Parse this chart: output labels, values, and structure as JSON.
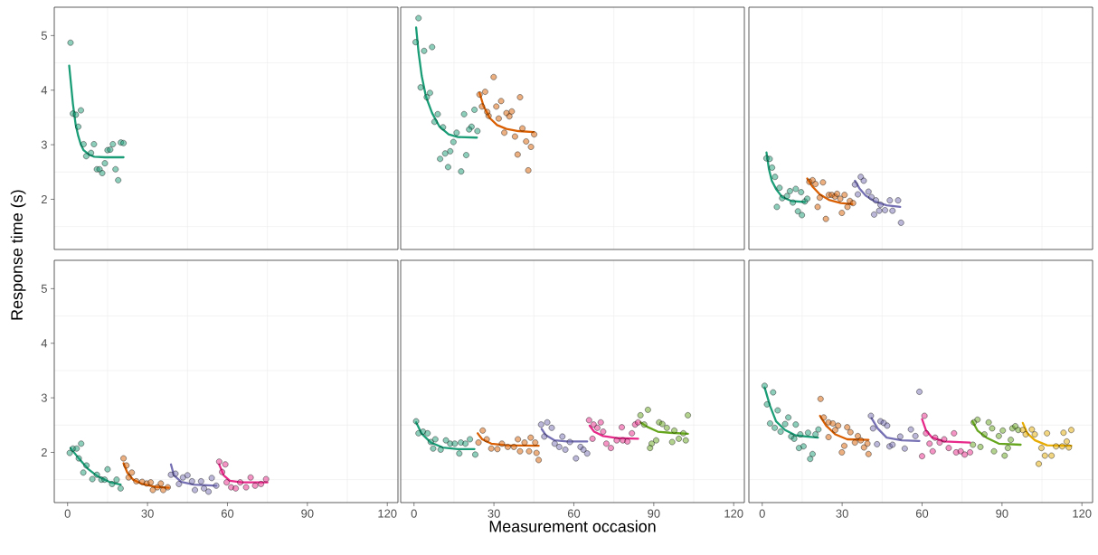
{
  "chart_data": [
    {
      "type": "scatter",
      "xlim": [
        -5,
        124
      ],
      "ylim": [
        1.08,
        5.52
      ],
      "xticks": [
        0,
        30,
        60,
        90,
        120,
        {
          "value": 15,
          "label": null
        },
        {
          "value": 45,
          "label": null
        },
        {
          "value": 75,
          "label": null
        },
        {
          "value": 105,
          "label": null
        }
      ],
      "yticks": [
        2,
        3,
        4,
        5,
        {
          "value": 1.5,
          "label": null
        },
        {
          "value": 2.5,
          "label": null
        },
        {
          "value": 3.5,
          "label": null
        },
        {
          "value": 4.5,
          "label": null
        }
      ],
      "grid": true,
      "marker": "circle",
      "tick_labels": "y",
      "series": [
        {
          "color": "#1b9e77",
          "x": [
            1.1,
            2,
            3.1,
            5,
            4,
            6,
            7,
            8.8,
            9.9,
            11,
            12,
            13,
            14,
            15,
            16,
            17,
            18,
            19,
            20,
            21
          ],
          "values": [
            4.87,
            3.57,
            3.55,
            3.63,
            3.33,
            3.01,
            2.79,
            2.85,
            3.01,
            2.55,
            2.55,
            2.48,
            2.66,
            2.9,
            2.91,
            3.01,
            2.55,
            2.35,
            3.04,
            3.03
          ]
        },
        {
          "type": "line",
          "marker": "none",
          "color": "#1b9e77",
          "x": [
            0.6,
            2,
            3,
            4,
            5,
            6,
            8,
            10,
            14,
            21
          ],
          "values": [
            4.45,
            3.75,
            3.38,
            3.16,
            3.0,
            2.9,
            2.82,
            2.78,
            2.77,
            2.77
          ]
        }
      ]
    },
    {
      "type": "scatter",
      "xlim": [
        -5,
        124
      ],
      "ylim": [
        1.08,
        5.52
      ],
      "xticks": [
        0,
        30,
        60,
        90,
        120,
        {
          "value": 15,
          "label": null
        },
        {
          "value": 45,
          "label": null
        },
        {
          "value": 75,
          "label": null
        },
        {
          "value": 105,
          "label": null
        }
      ],
      "yticks": [
        2,
        3,
        4,
        5,
        {
          "value": 1.5,
          "label": null
        },
        {
          "value": 2.5,
          "label": null
        },
        {
          "value": 3.5,
          "label": null
        },
        {
          "value": 4.5,
          "label": null
        }
      ],
      "grid": true,
      "marker": "circle",
      "tick_labels": false,
      "series": [
        {
          "color": "#1b9e77",
          "x": [
            1.7,
            0.6,
            3.8,
            6.8,
            2.5,
            4.8,
            6,
            8.9,
            7.7,
            10.9,
            16,
            18.8,
            22.7,
            21.6,
            20.7,
            23.8,
            14.8,
            13.6,
            11.7,
            9.8,
            12.8,
            19.6,
            17.7
          ],
          "values": [
            5.32,
            4.88,
            4.72,
            4.79,
            4.05,
            3.87,
            3.95,
            3.56,
            3.42,
            3.32,
            3.22,
            3.56,
            3.64,
            3.33,
            3.28,
            3.25,
            3.05,
            2.88,
            2.84,
            2.74,
            2.59,
            2.81,
            2.51
          ]
        },
        {
          "type": "line",
          "marker": "none",
          "color": "#1b9e77",
          "x": [
            0.8,
            1.7,
            2.9,
            4.5,
            6.8,
            9.6,
            13,
            16.5,
            23.6
          ],
          "values": [
            5.15,
            4.7,
            4.26,
            3.88,
            3.58,
            3.33,
            3.19,
            3.14,
            3.13
          ]
        },
        {
          "color": "#d95f02",
          "x": [
            29.9,
            26.7,
            24.6,
            25.5,
            30.9,
            32.7,
            39.8,
            28,
            27.5,
            31.8,
            34.7,
            35.8,
            36.7,
            33.9,
            37.9,
            40.7,
            42.1,
            45.1,
            43.9,
            38.9,
            42.9
          ],
          "values": [
            4.24,
            3.97,
            3.92,
            3.7,
            3.7,
            3.8,
            3.87,
            3.53,
            3.6,
            3.48,
            3.58,
            3.52,
            3.61,
            3.22,
            3.15,
            3.3,
            3.06,
            3.19,
            2.96,
            2.82,
            2.53
          ]
        },
        {
          "type": "line",
          "marker": "none",
          "color": "#d95f02",
          "x": [
            24.6,
            26.1,
            28.4,
            31.2,
            34.7,
            39.2,
            44.9
          ],
          "values": [
            3.95,
            3.71,
            3.49,
            3.36,
            3.29,
            3.25,
            3.23
          ]
        }
      ]
    },
    {
      "type": "scatter",
      "xlim": [
        -5,
        124
      ],
      "ylim": [
        1.08,
        5.52
      ],
      "xticks": [
        0,
        30,
        60,
        90,
        120,
        {
          "value": 15,
          "label": null
        },
        {
          "value": 45,
          "label": null
        },
        {
          "value": 75,
          "label": null
        },
        {
          "value": 105,
          "label": null
        }
      ],
      "yticks": [
        2,
        3,
        4,
        5,
        {
          "value": 1.5,
          "label": null
        },
        {
          "value": 2.5,
          "label": null
        },
        {
          "value": 3.5,
          "label": null
        },
        {
          "value": 4.5,
          "label": null
        }
      ],
      "grid": true,
      "marker": "circle",
      "tick_labels": false,
      "series": [
        {
          "color": "#1b9e77",
          "x": [
            1.6,
            2.8,
            3.7,
            4.8,
            6.5,
            5.5,
            7.5,
            9.3,
            10.4,
            11.5,
            12.6,
            14.6,
            13.4,
            14.9,
            16,
            16.9
          ],
          "values": [
            2.75,
            2.74,
            2.58,
            2.41,
            2.21,
            1.86,
            2.02,
            2.06,
            2.15,
            1.94,
            2.19,
            2.13,
            1.78,
            1.71,
            1.96,
            2.01
          ]
        },
        {
          "type": "line",
          "marker": "none",
          "color": "#1b9e77",
          "x": [
            1.6,
            2.5,
            3.6,
            5.3,
            7.5,
            10.9,
            16
          ],
          "values": [
            2.86,
            2.56,
            2.34,
            2.18,
            2.04,
            1.97,
            1.95
          ]
        },
        {
          "color": "#d95f02",
          "x": [
            17.7,
            18.9,
            20,
            22.8,
            21.6,
            20.8,
            23.9,
            25,
            26.1,
            27.3,
            28.1,
            29.3,
            30.9,
            29.9,
            32,
            32.9,
            34.1
          ],
          "values": [
            2.32,
            2.35,
            2.28,
            2.31,
            2.03,
            1.86,
            1.64,
            2.08,
            2.08,
            2.05,
            2.1,
            2.01,
            2.08,
            1.75,
            1.86,
            1.97,
            1.93
          ]
        },
        {
          "type": "line",
          "marker": "none",
          "color": "#d95f02",
          "x": [
            16.9,
            18.9,
            21.6,
            25,
            29.5,
            33.8
          ],
          "values": [
            2.38,
            2.23,
            2.09,
            1.99,
            1.93,
            1.91
          ]
        },
        {
          "color": "#7570b3",
          "x": [
            37,
            38.1,
            34.8,
            35.9,
            39.9,
            41,
            42.7,
            44.4,
            47.9,
            51,
            46.1,
            48.9,
            43.9,
            42,
            52.1
          ],
          "values": [
            2.41,
            2.34,
            2.27,
            2.09,
            2.14,
            2.04,
            1.98,
            1.9,
            1.98,
            1.98,
            1.8,
            1.79,
            1.79,
            1.72,
            1.57
          ]
        },
        {
          "type": "line",
          "marker": "none",
          "color": "#7570b3",
          "x": [
            34.8,
            36.5,
            38.8,
            42.2,
            46.7,
            51.8
          ],
          "values": [
            2.34,
            2.2,
            2.07,
            1.96,
            1.89,
            1.86
          ]
        }
      ]
    },
    {
      "type": "scatter",
      "xlim": [
        -5,
        124
      ],
      "ylim": [
        1.08,
        5.52
      ],
      "xticks": [
        0,
        30,
        60,
        90,
        120,
        {
          "value": 15,
          "label": null
        },
        {
          "value": 45,
          "label": null
        },
        {
          "value": 75,
          "label": null
        },
        {
          "value": 105,
          "label": null
        }
      ],
      "yticks": [
        2,
        3,
        4,
        5,
        {
          "value": 1.5,
          "label": null
        },
        {
          "value": 2.5,
          "label": null
        },
        {
          "value": 3.5,
          "label": null
        },
        {
          "value": 4.5,
          "label": null
        }
      ],
      "grid": true,
      "marker": "circle",
      "ylabel": "Response time (s)",
      "series": [
        {
          "color": "#1b9e77",
          "x": [
            0.8,
            2,
            3.4,
            5.1,
            4.2,
            7.1,
            5.9,
            9.3,
            11,
            12.7,
            15,
            13.9,
            16.7,
            18.4,
            19.9
          ],
          "values": [
            1.99,
            2.07,
            2.07,
            2.16,
            1.89,
            1.76,
            1.63,
            1.51,
            1.59,
            1.5,
            1.69,
            1.5,
            1.42,
            1.5,
            1.34
          ]
        },
        {
          "type": "line",
          "marker": "none",
          "color": "#1b9e77",
          "x": [
            1.1,
            4.2,
            7.6,
            11,
            15.6,
            19.9
          ],
          "values": [
            2.08,
            1.89,
            1.7,
            1.57,
            1.46,
            1.41
          ]
        },
        {
          "color": "#d95f02",
          "x": [
            21,
            22.1,
            24.1,
            22.9,
            25.8,
            28,
            29.7,
            31.2,
            32,
            33.7,
            35,
            35.9,
            37.6
          ],
          "values": [
            1.89,
            1.76,
            1.63,
            1.54,
            1.47,
            1.46,
            1.43,
            1.45,
            1.31,
            1.36,
            1.43,
            1.31,
            1.36
          ]
        },
        {
          "type": "line",
          "marker": "none",
          "color": "#d95f02",
          "x": [
            21,
            22.4,
            24.6,
            28,
            32.6,
            38
          ],
          "values": [
            1.8,
            1.63,
            1.5,
            1.42,
            1.37,
            1.35
          ]
        },
        {
          "color": "#7570b3",
          "x": [
            38.8,
            40.5,
            41.8,
            43.3,
            45,
            46.7,
            47.8,
            50.1,
            51.2,
            52.9,
            54.1,
            55.8
          ],
          "values": [
            1.59,
            1.61,
            1.42,
            1.54,
            1.58,
            1.47,
            1.31,
            1.47,
            1.34,
            1.28,
            1.53,
            1.39
          ]
        },
        {
          "type": "line",
          "marker": "none",
          "color": "#7570b3",
          "x": [
            38.8,
            39.9,
            42.7,
            47.3,
            55.8
          ],
          "values": [
            1.78,
            1.58,
            1.46,
            1.41,
            1.39
          ]
        },
        {
          "color": "#e7298a",
          "x": [
            56.9,
            59.2,
            58,
            59.7,
            61.4,
            63.1,
            64.8,
            67,
            68.7,
            70.4,
            72.6,
            74.5
          ],
          "values": [
            1.83,
            1.78,
            1.64,
            1.45,
            1.36,
            1.34,
            1.45,
            1.36,
            1.54,
            1.39,
            1.42,
            1.51
          ]
        },
        {
          "type": "line",
          "marker": "none",
          "color": "#e7298a",
          "x": [
            56.9,
            58.6,
            60.9,
            65.4,
            75
          ],
          "values": [
            1.78,
            1.58,
            1.48,
            1.45,
            1.45
          ]
        }
      ]
    },
    {
      "type": "scatter",
      "xlim": [
        -5,
        124
      ],
      "ylim": [
        1.08,
        5.52
      ],
      "xticks": [
        0,
        30,
        60,
        90,
        120,
        {
          "value": 15,
          "label": null
        },
        {
          "value": 45,
          "label": null
        },
        {
          "value": 75,
          "label": null
        },
        {
          "value": 105,
          "label": null
        }
      ],
      "yticks": [
        2,
        3,
        4,
        5,
        {
          "value": 1.5,
          "label": null
        },
        {
          "value": 2.5,
          "label": null
        },
        {
          "value": 3.5,
          "label": null
        },
        {
          "value": 4.5,
          "label": null
        }
      ],
      "grid": true,
      "marker": "circle",
      "tick_labels": "x",
      "xlabel": "Measurement occasion",
      "series": [
        {
          "color": "#1b9e77",
          "x": [
            0.8,
            1.7,
            3.4,
            5.1,
            6.3,
            8,
            7.2,
            10,
            12,
            13.6,
            15.3,
            17,
            17.6,
            19.3,
            21,
            23
          ],
          "values": [
            2.57,
            2.35,
            2.38,
            2.35,
            2.19,
            2.24,
            2.07,
            2.05,
            2.22,
            2.16,
            2.16,
            1.98,
            2.18,
            2.16,
            2.24,
            1.96
          ]
        },
        {
          "type": "line",
          "marker": "none",
          "color": "#1b9e77",
          "x": [
            0.8,
            2.8,
            6.3,
            10.8,
            16.5,
            22.7
          ],
          "values": [
            2.55,
            2.35,
            2.18,
            2.09,
            2.06,
            2.06
          ]
        },
        {
          "color": "#d95f02",
          "x": [
            25.8,
            24.2,
            27.3,
            29,
            31.3,
            33,
            35.2,
            37.5,
            39,
            39.8,
            41.5,
            43.2,
            43.8,
            45.5,
            46,
            46.8
          ],
          "values": [
            2.4,
            2.18,
            2.24,
            2.07,
            2.06,
            2.16,
            2.1,
            2.1,
            2.24,
            2.02,
            2.18,
            2.02,
            2.27,
            2.18,
            1.99,
            1.86
          ]
        },
        {
          "type": "line",
          "marker": "none",
          "color": "#d95f02",
          "x": [
            23.9,
            25.6,
            29,
            34.7,
            46.8
          ],
          "values": [
            2.35,
            2.24,
            2.16,
            2.13,
            2.12
          ]
        },
        {
          "color": "#7570b3",
          "x": [
            47.7,
            50,
            51.7,
            48.9,
            52.8,
            54.5,
            55.7,
            56.8,
            58.5,
            60.8,
            62.5,
            63.6,
            65
          ],
          "values": [
            2.51,
            2.55,
            2.45,
            2.29,
            2.16,
            2.1,
            2.29,
            2.05,
            2.19,
            1.89,
            2.1,
            2.05,
            1.98
          ]
        },
        {
          "type": "line",
          "marker": "none",
          "color": "#7570b3",
          "x": [
            47.9,
            49.4,
            52.8,
            57.4,
            65
          ],
          "values": [
            2.43,
            2.32,
            2.22,
            2.2,
            2.2
          ]
        },
        {
          "color": "#e7298a",
          "x": [
            65.7,
            67.4,
            70.1,
            68.8,
            71,
            67,
            78,
            72.2,
            73.9,
            76.1,
            78.4,
            80.1,
            81.8,
            83,
            84.1
          ],
          "values": [
            2.59,
            2.51,
            2.55,
            2.45,
            2.38,
            2.25,
            2.46,
            2.16,
            2.08,
            2.22,
            2.22,
            2.2,
            2.35,
            2.51,
            2.55
          ]
        },
        {
          "type": "line",
          "marker": "none",
          "color": "#e7298a",
          "x": [
            65.9,
            67.6,
            71,
            76.7,
            84.1
          ],
          "values": [
            2.49,
            2.38,
            2.3,
            2.26,
            2.25
          ]
        },
        {
          "color": "#66a61e",
          "x": [
            85,
            87.8,
            86.4,
            89.2,
            88.6,
            90.9,
            92,
            93.2,
            94.9,
            97.7,
            96.9,
            99.4,
            101.1,
            102,
            102.8
          ],
          "values": [
            2.68,
            2.78,
            2.51,
            2.16,
            2.08,
            2.22,
            2.55,
            2.52,
            2.45,
            2.4,
            2.19,
            2.25,
            2.35,
            2.22,
            2.68
          ]
        },
        {
          "type": "line",
          "marker": "none",
          "color": "#66a61e",
          "x": [
            85,
            87.5,
            91.5,
            96,
            102.8
          ],
          "values": [
            2.55,
            2.47,
            2.38,
            2.36,
            2.34
          ]
        }
      ]
    },
    {
      "type": "scatter",
      "xlim": [
        -5,
        124
      ],
      "ylim": [
        1.08,
        5.52
      ],
      "xticks": [
        0,
        30,
        60,
        90,
        120,
        {
          "value": 15,
          "label": null
        },
        {
          "value": 45,
          "label": null
        },
        {
          "value": 75,
          "label": null
        },
        {
          "value": 105,
          "label": null
        }
      ],
      "yticks": [
        2,
        3,
        4,
        5,
        {
          "value": 1.5,
          "label": null
        },
        {
          "value": 2.5,
          "label": null
        },
        {
          "value": 3.5,
          "label": null
        },
        {
          "value": 4.5,
          "label": null
        }
      ],
      "grid": true,
      "marker": "circle",
      "tick_labels": "x",
      "series": [
        {
          "color": "#1b9e77",
          "x": [
            0.9,
            4.1,
            1.8,
            5.8,
            2.95,
            4.7,
            6.9,
            8.6,
            9.8,
            10.9,
            12.6,
            12,
            14.3,
            15.5,
            13.8,
            17.2,
            18.9,
            18,
            20,
            21.1
          ],
          "values": [
            3.22,
            3.1,
            2.88,
            2.77,
            2.53,
            2.45,
            2.38,
            2.52,
            2.64,
            2.29,
            2.51,
            2.25,
            2.33,
            2.11,
            2.08,
            2.36,
            1.97,
            1.88,
            2.33,
            2.42
          ]
        },
        {
          "type": "line",
          "marker": "none",
          "color": "#1b9e77",
          "x": [
            0.9,
            2.95,
            5.2,
            8.6,
            12.6,
            20.9
          ],
          "values": [
            3.19,
            2.85,
            2.57,
            2.41,
            2.31,
            2.27
          ]
        },
        {
          "color": "#d95f02",
          "x": [
            21.9,
            23.1,
            24.9,
            26.5,
            28.5,
            27.4,
            24.9,
            31.9,
            33.1,
            30.8,
            29.9,
            34.8,
            35.9,
            37,
            38.2,
            39.5,
            39.9
          ],
          "values": [
            2.98,
            2.64,
            2.55,
            2.53,
            2.49,
            2.41,
            2.28,
            2.46,
            2.37,
            2.12,
            2.0,
            2.18,
            2.3,
            2.22,
            2.09,
            2.16,
            1.97
          ]
        },
        {
          "type": "line",
          "marker": "none",
          "color": "#d95f02",
          "x": [
            21.7,
            24,
            27.4,
            31.9,
            39.9
          ],
          "values": [
            2.67,
            2.49,
            2.33,
            2.24,
            2.23
          ]
        },
        {
          "color": "#7570b3",
          "x": [
            40.8,
            41.6,
            44.4,
            45.6,
            46.9,
            43.1,
            47.8,
            48.9,
            51.8,
            53.5,
            55.8,
            57.5,
            59
          ],
          "values": [
            2.67,
            2.44,
            2.57,
            2.54,
            2.49,
            2.15,
            2.11,
            2.14,
            2.29,
            2.07,
            2.42,
            2.3,
            3.11
          ]
        },
        {
          "type": "line",
          "marker": "none",
          "color": "#7570b3",
          "x": [
            41,
            43.3,
            46.7,
            52.4,
            59
          ],
          "values": [
            2.63,
            2.44,
            2.27,
            2.22,
            2.21
          ]
        },
        {
          "color": "#e7298a",
          "x": [
            60.9,
            60,
            61.5,
            62.8,
            64,
            64.9,
            66.6,
            68.3,
            70,
            72,
            72.8,
            74.5,
            76,
            78
          ],
          "values": [
            2.67,
            1.93,
            2.35,
            2.16,
            2.02,
            2.27,
            2.18,
            2.24,
            2.08,
            2.35,
            2.0,
            2.02,
            1.96,
            2.0
          ]
        },
        {
          "type": "line",
          "marker": "none",
          "color": "#e7298a",
          "x": [
            60,
            61.5,
            63.8,
            68.3,
            78
          ],
          "values": [
            2.61,
            2.4,
            2.27,
            2.2,
            2.18
          ]
        },
        {
          "color": "#66a61e",
          "x": [
            80.8,
            79.4,
            79.1,
            81.9,
            85,
            86.3,
            83.4,
            87,
            88.8,
            90.3,
            92.2,
            91,
            93.3,
            93.9,
            95,
            96.1
          ],
          "values": [
            2.6,
            2.55,
            2.14,
            2.1,
            2.55,
            2.44,
            2.33,
            2.02,
            2.3,
            2.4,
            2.08,
            1.94,
            2.23,
            2.44,
            2.48,
            2.41
          ]
        },
        {
          "type": "line",
          "marker": "none",
          "color": "#66a61e",
          "x": [
            78.9,
            80.8,
            84.2,
            88.8,
            97
          ],
          "values": [
            2.57,
            2.4,
            2.27,
            2.16,
            2.14
          ]
        },
        {
          "color": "#e6ab02",
          "x": [
            97.8,
            98.9,
            101.2,
            102.3,
            104.8,
            106.9,
            106.1,
            108.6,
            103.8,
            110.3,
            112.6,
            113.1,
            114.3,
            116,
            115.1
          ],
          "values": [
            2.41,
            2.33,
            2.42,
            2.33,
            2.08,
            2.35,
            1.94,
            1.94,
            1.79,
            2.11,
            2.11,
            2.36,
            2.2,
            2.41,
            2.09
          ]
        },
        {
          "type": "line",
          "marker": "none",
          "color": "#e6ab02",
          "x": [
            97.8,
            99.5,
            102.4,
            106.9,
            116
          ],
          "values": [
            2.54,
            2.35,
            2.22,
            2.13,
            2.12
          ]
        }
      ]
    }
  ]
}
